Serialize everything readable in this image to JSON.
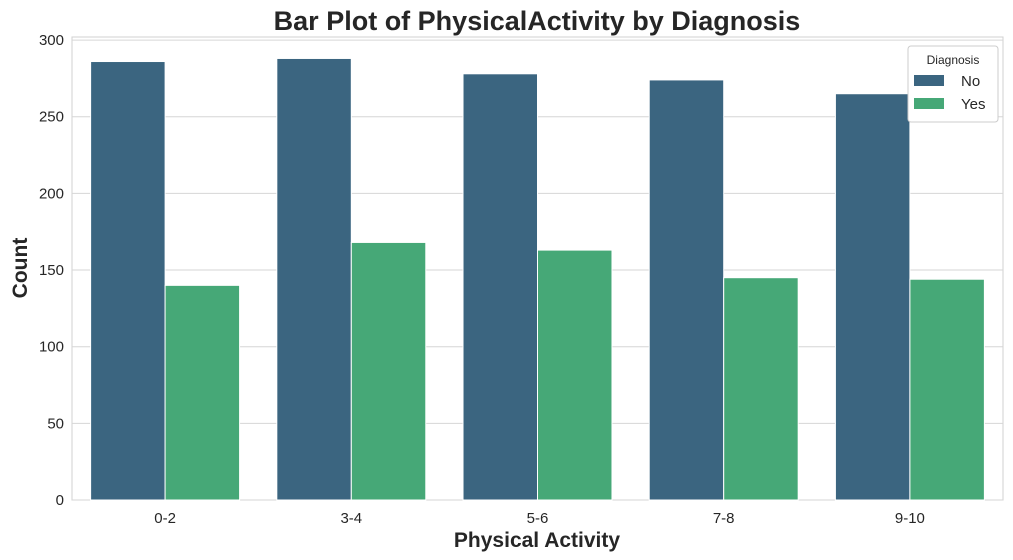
{
  "chart_data": {
    "type": "bar",
    "title": "Bar Plot of PhysicalActivity by Diagnosis",
    "xlabel": "Physical Activity",
    "ylabel": "Count",
    "categories": [
      "0-2",
      "3-4",
      "5-6",
      "7-8",
      "9-10"
    ],
    "series": [
      {
        "name": "No",
        "color": "#3b6580",
        "values": [
          286,
          288,
          278,
          274,
          265
        ]
      },
      {
        "name": "Yes",
        "color": "#46a877",
        "values": [
          140,
          168,
          163,
          145,
          144
        ]
      }
    ],
    "ylim": [
      0,
      302
    ],
    "yticks": [
      0,
      50,
      100,
      150,
      200,
      250,
      300
    ],
    "grid": true,
    "legend": {
      "title": "Diagnosis",
      "placement": "top-right"
    }
  }
}
